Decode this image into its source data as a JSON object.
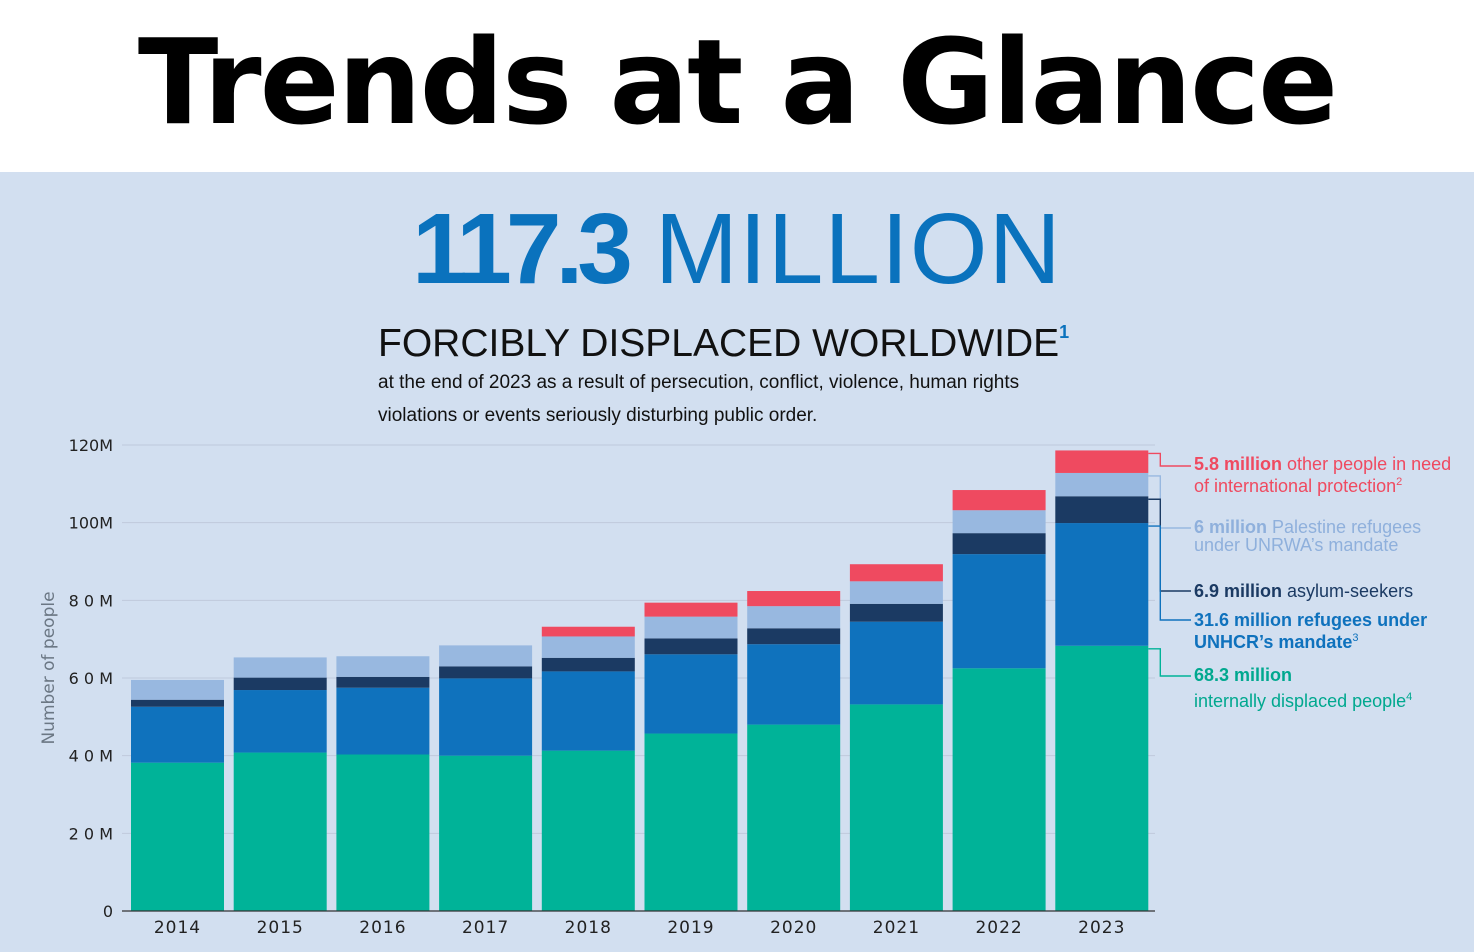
{
  "header": {
    "title": "Trends at a Glance"
  },
  "headline": {
    "number": "117.3",
    "unit": "MILLION"
  },
  "subheadline": {
    "text": "FORCIBLY DISPLACED WORLDWIDE",
    "footnote": "1"
  },
  "description": "at the end of 2023 as a result of persecution, conflict, violence, human rights violations or events seriously disturbing public order.",
  "callouts": {
    "other": {
      "bold": "5.8 million",
      "text": " other people in need of international protection",
      "footnote": "2"
    },
    "unrwa": {
      "bold": "6 million",
      "text": " Palestine refugees under UNRWA’s mandate"
    },
    "asylum": {
      "bold": "6.9 million",
      "text": " asylum-seekers"
    },
    "refugees": {
      "bold": "31.6 million refugees under UNHCR’s mandate",
      "footnote": "3"
    },
    "idp": {
      "bold": "68.3 million",
      "text": "internally displaced people",
      "footnote": "4"
    }
  },
  "chart_data": {
    "type": "bar",
    "stacked": true,
    "categories": [
      "2014",
      "2015",
      "2016",
      "2017",
      "2018",
      "2019",
      "2020",
      "2021",
      "2022",
      "2023"
    ],
    "ylabel": "Number of people",
    "yticks": [
      "0",
      "2 0 M",
      "4 0 M",
      "6 0 M",
      "8 0 M",
      "100M",
      "120M"
    ],
    "ylim": [
      0,
      120
    ],
    "grid": true,
    "colors": {
      "idp": "#00b398",
      "refugees": "#0f72bd",
      "asylum": "#1b3a63",
      "unrwa": "#98b8e0",
      "other": "#ef4a60"
    },
    "series": [
      {
        "key": "idp",
        "values": [
          38.2,
          40.8,
          40.3,
          40.0,
          41.3,
          45.7,
          48.0,
          53.2,
          62.5,
          68.3
        ]
      },
      {
        "key": "refugees",
        "values": [
          14.4,
          16.1,
          17.2,
          19.9,
          20.4,
          20.4,
          20.7,
          21.3,
          29.4,
          31.6
        ]
      },
      {
        "key": "asylum",
        "values": [
          1.8,
          3.2,
          2.8,
          3.1,
          3.5,
          4.1,
          4.1,
          4.6,
          5.4,
          6.9
        ]
      },
      {
        "key": "unrwa",
        "values": [
          5.1,
          5.2,
          5.3,
          5.4,
          5.5,
          5.6,
          5.7,
          5.8,
          5.9,
          6.0
        ]
      },
      {
        "key": "other",
        "values": [
          0,
          0,
          0,
          0,
          2.5,
          3.6,
          3.9,
          4.4,
          5.2,
          5.8
        ]
      }
    ]
  }
}
